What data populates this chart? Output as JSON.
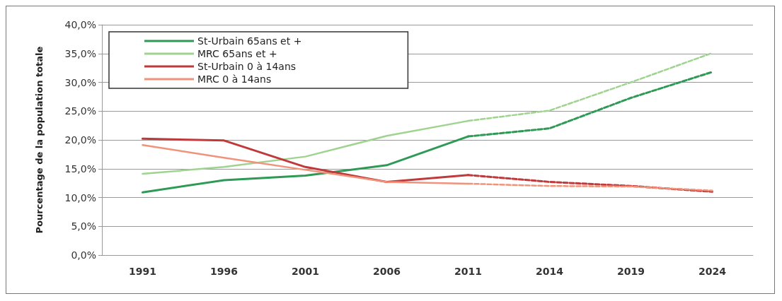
{
  "chart_data": {
    "type": "line",
    "ylabel": "Pourcentage de la population totale",
    "categories": [
      "1991",
      "1996",
      "2001",
      "2006",
      "2011",
      "2014",
      "2019",
      "2024"
    ],
    "ylim": [
      0,
      40
    ],
    "yticks": [
      {
        "value": 0,
        "label": "0,0%"
      },
      {
        "value": 5,
        "label": "5,0%"
      },
      {
        "value": 10,
        "label": "10,0%"
      },
      {
        "value": 15,
        "label": "15,0%"
      },
      {
        "value": 20,
        "label": "20,0%"
      },
      {
        "value": 25,
        "label": "25,0%"
      },
      {
        "value": 30,
        "label": "30,0%"
      },
      {
        "value": 35,
        "label": "35,0%"
      },
      {
        "value": 40,
        "label": "40,0%"
      }
    ],
    "grid": "y",
    "legend": "top left",
    "marker": "none",
    "series": [
      {
        "name": "St-Urbain 65ans et +",
        "color": "#2e9a55",
        "values": [
          10.9,
          13.0,
          13.8,
          15.6,
          20.6,
          null,
          null,
          null
        ]
      },
      {
        "name": "MRC 65ans et +",
        "color": "#9fd38f",
        "values": [
          14.1,
          15.3,
          17.1,
          20.7,
          23.3,
          null,
          null,
          null
        ]
      },
      {
        "name": "St-Urbain 0 à 14ans",
        "color": "#c0393b",
        "values": [
          20.2,
          19.9,
          15.3,
          12.7,
          13.9,
          null,
          null,
          null
        ]
      },
      {
        "name": "MRC 0 à 14ans",
        "color": "#f0937a",
        "values": [
          19.1,
          16.9,
          14.8,
          12.7,
          12.4,
          null,
          null,
          null
        ]
      },
      {
        "color": "#2e9a55",
        "line_style": "dashed",
        "values": [
          null,
          null,
          null,
          null,
          20.6,
          22.0,
          27.3,
          31.8
        ]
      },
      {
        "color": "#9fd38f",
        "line_style": "dashed",
        "values": [
          null,
          null,
          null,
          null,
          23.3,
          25.1,
          30.0,
          35.1
        ]
      },
      {
        "color": "#c0393b",
        "line_style": "dashed",
        "values": [
          null,
          null,
          null,
          null,
          13.9,
          12.7,
          12.0,
          11.0
        ]
      },
      {
        "color": "#f0937a",
        "line_style": "dashed",
        "values": [
          null,
          null,
          null,
          null,
          12.4,
          12.0,
          11.9,
          11.2
        ]
      }
    ]
  }
}
